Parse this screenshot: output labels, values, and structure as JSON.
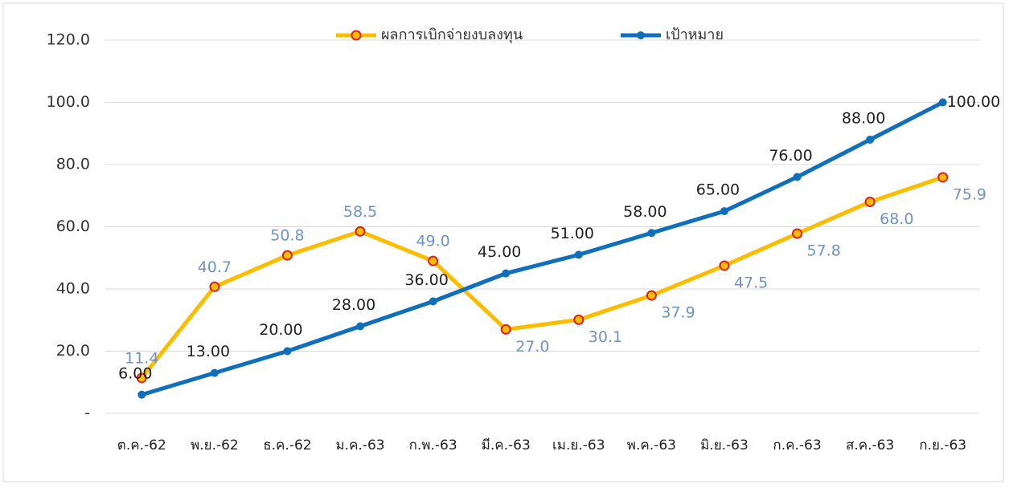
{
  "chart_data": {
    "type": "line",
    "categories": [
      "ต.ค.-62",
      "พ.ย.-62",
      "ธ.ค.-62",
      "ม.ค.-63",
      "ก.พ.-63",
      "มี.ค.-63",
      "เม.ย.-63",
      "พ.ค.-63",
      "มิ.ย.-63",
      "ก.ค.-63",
      "ส.ค.-63",
      "ก.ย.-63"
    ],
    "series": [
      {
        "name": "ผลการเบิกจ่ายงบลงทุน",
        "color": "#fbbd00",
        "marker_color": "#e0201b",
        "values": [
          11.4,
          40.7,
          50.8,
          58.5,
          49.0,
          27.0,
          30.1,
          37.9,
          47.5,
          57.8,
          68.0,
          75.9
        ],
        "value_labels": [
          "11.4",
          "40.7",
          "50.8",
          "58.5",
          "49.0",
          "27.0",
          "30.1",
          "37.9",
          "47.5",
          "57.8",
          "68.0",
          "75.9"
        ]
      },
      {
        "name": "เป้าหมาย",
        "color": "#0f6fba",
        "marker_color": "#0f6fba",
        "values": [
          6,
          13,
          20,
          28,
          36,
          45,
          51,
          58,
          65,
          76,
          88,
          100
        ],
        "value_labels": [
          "6.00",
          "13.00",
          "20.00",
          "28.00",
          "36.00",
          "45.00",
          "51.00",
          "58.00",
          "65.00",
          "76.00",
          "88.00",
          "100.00"
        ]
      }
    ],
    "ylim": [
      0,
      120
    ],
    "yticks": [
      {
        "value": 0,
        "label": "-"
      },
      {
        "value": 20,
        "label": "20.0"
      },
      {
        "value": 40,
        "label": "40.0"
      },
      {
        "value": 60,
        "label": "60.0"
      },
      {
        "value": 80,
        "label": "80.0"
      },
      {
        "value": 100,
        "label": "100.0"
      },
      {
        "value": 120,
        "label": "120.0"
      }
    ],
    "grid": true,
    "legend": "top"
  }
}
